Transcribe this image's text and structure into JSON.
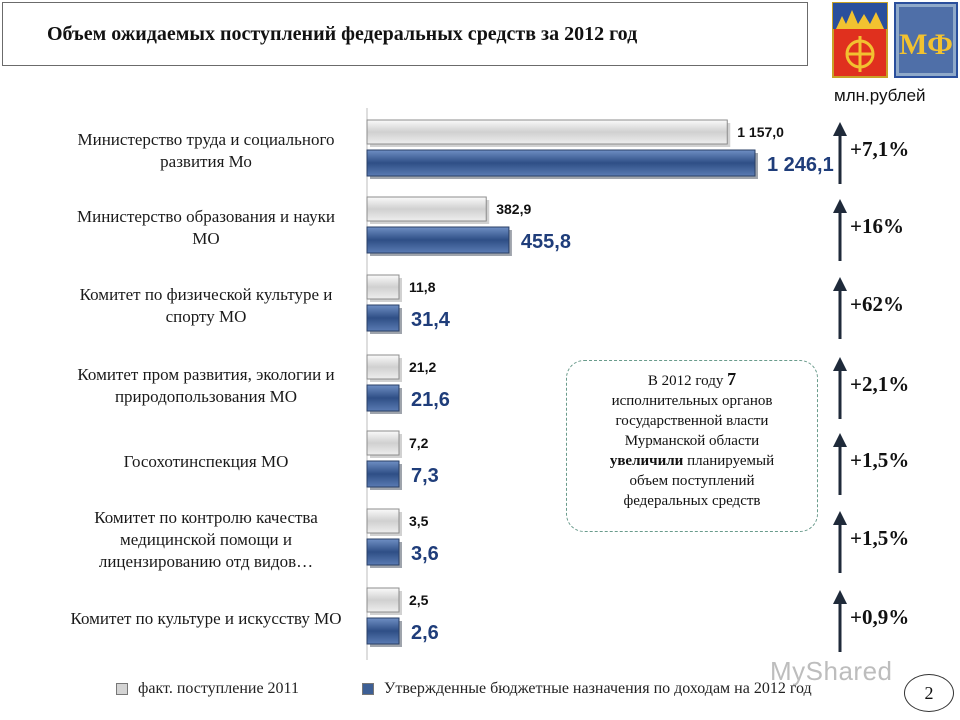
{
  "title": "Объем  ожидаемых поступлений федеральных средств  за 2012 год",
  "units": "млн.рублей",
  "page_number": "2",
  "watermark": "MyShared",
  "colors": {
    "fact_2011": "#d4d4d4",
    "plan_2012": "#3d5f95",
    "arrow": "#1f2a3a",
    "accent": "#1f3d7a"
  },
  "callout": {
    "line1_prefix": "В 2012 году ",
    "line1_number": "7",
    "line2": "исполнительных органов",
    "line3": "государственной власти",
    "line4": "Мурманской области",
    "line5_bold": "увеличили",
    "line5_rest": " планируемый",
    "line6": "объем поступлений",
    "line7": "федеральных средств"
  },
  "chart_data": {
    "type": "bar",
    "orientation": "horizontal",
    "title": "Объем  ожидаемых поступлений федеральных средств  за 2012 год",
    "units": "млн.рублей",
    "categories": [
      [
        "Министерство труда и социального",
        "развития Мо"
      ],
      [
        "Министерство образования и науки",
        "МО"
      ],
      [
        "Комитет по физической культуре и",
        "спорту МО"
      ],
      [
        "Комитет пром развития, экологии и",
        "природопользования МО"
      ],
      [
        "Госохотинспекция МО"
      ],
      [
        "Комитет по контролю качества",
        "медицинской помощи и",
        "лицензированию отд видов…"
      ],
      [
        "Комитет по культуре и искусству МО"
      ]
    ],
    "series": [
      {
        "name": "факт. поступление 2011",
        "values": [
          1157.0,
          382.9,
          11.8,
          21.2,
          7.2,
          3.5,
          2.5
        ],
        "labels": [
          "1 157,0",
          "382,9",
          "11,8",
          "21,2",
          "7,2",
          "3,5",
          "2,5"
        ]
      },
      {
        "name": "Утвержденные бюджетные назначения по доходам на 2012 год",
        "values": [
          1246.1,
          455.8,
          31.4,
          21.6,
          7.3,
          3.6,
          2.6
        ],
        "labels": [
          "1 246,1",
          "455,8",
          "31,4",
          "21,6",
          "7,3",
          "3,6",
          "2,6"
        ]
      }
    ],
    "growth": [
      "+7,1%",
      "+16%",
      "+62%",
      "+2,1%",
      "+1,5%",
      "+1,5%",
      "+0,9%"
    ],
    "legend_position": "bottom"
  }
}
